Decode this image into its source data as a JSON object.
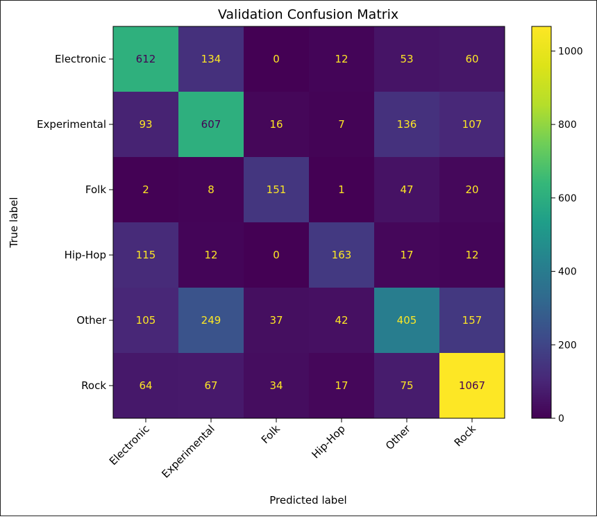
{
  "chart_data": {
    "type": "heatmap",
    "title": "Validation Confusion Matrix",
    "xlabel": "Predicted label",
    "ylabel": "True label",
    "row_labels": [
      "Electronic",
      "Experimental",
      "Folk",
      "Hip-Hop",
      "Other",
      "Rock"
    ],
    "col_labels": [
      "Electronic",
      "Experimental",
      "Folk",
      "Hip-Hop",
      "Other",
      "Rock"
    ],
    "matrix": [
      [
        612,
        134,
        0,
        12,
        53,
        60
      ],
      [
        93,
        607,
        16,
        7,
        136,
        107
      ],
      [
        2,
        8,
        151,
        1,
        47,
        20
      ],
      [
        115,
        12,
        0,
        163,
        17,
        12
      ],
      [
        105,
        249,
        37,
        42,
        405,
        157
      ],
      [
        64,
        67,
        34,
        17,
        75,
        1067
      ]
    ],
    "colormap": "viridis",
    "vmin": 0,
    "vmax": 1067,
    "colorbar_ticks": [
      0,
      200,
      400,
      600,
      800,
      1000
    ],
    "text_color_dark": "#440154",
    "text_color_light": "#fde725"
  }
}
